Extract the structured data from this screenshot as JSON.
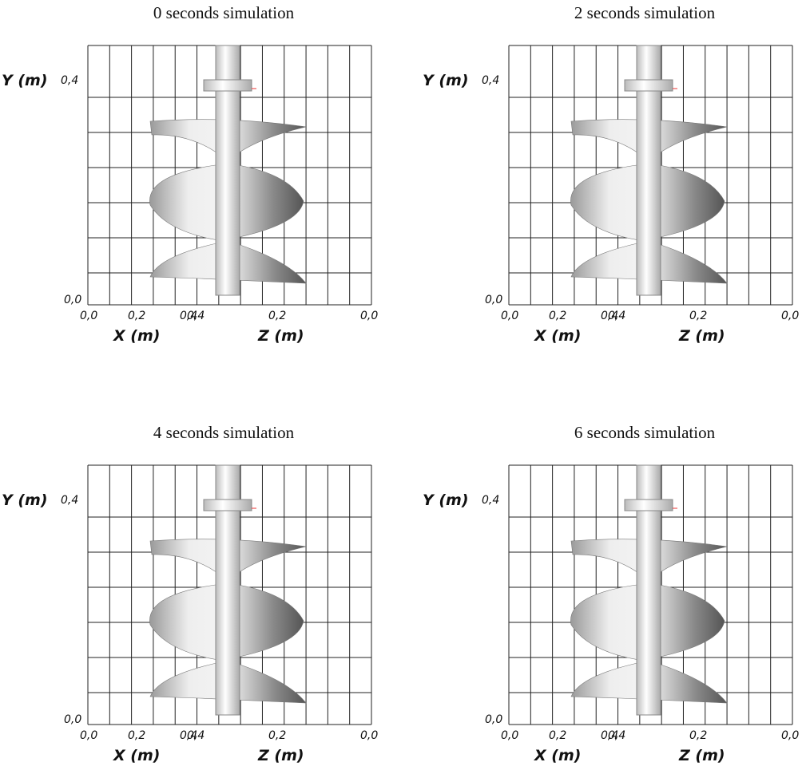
{
  "panels": [
    {
      "title": "0 seconds simulation",
      "y_label": "Y (m)",
      "y_ticks": [
        "0,4",
        "0,0"
      ],
      "x_label": "X (m)",
      "z_label": "Z (m)",
      "x_ticks": [
        "0,0",
        "0,2",
        "0,4"
      ],
      "z_ticks": [
        "0,4",
        "0,2",
        "0,0"
      ]
    },
    {
      "title": "2 seconds simulation",
      "y_label": "Y (m)",
      "y_ticks": [
        "0,4",
        "0,0"
      ],
      "x_label": "X (m)",
      "z_label": "Z (m)",
      "x_ticks": [
        "0,0",
        "0,2",
        "0,4"
      ],
      "z_ticks": [
        "0,4",
        "0,2",
        "0,0"
      ]
    },
    {
      "title": "4 seconds simulation",
      "y_label": "Y (m)",
      "y_ticks": [
        "0,4",
        "0,0"
      ],
      "x_label": "X (m)",
      "z_label": "Z (m)",
      "x_ticks": [
        "0,0",
        "0,2",
        "0,4"
      ],
      "z_ticks": [
        "0,4",
        "0,2",
        "0,0"
      ]
    },
    {
      "title": "6 seconds simulation",
      "y_label": "Y (m)",
      "y_ticks": [
        "0,4",
        "0,0"
      ],
      "x_label": "X (m)",
      "z_label": "Z (m)",
      "x_ticks": [
        "0,0",
        "0,2",
        "0,4"
      ],
      "z_ticks": [
        "0,4",
        "0,2",
        "0,0"
      ]
    }
  ]
}
